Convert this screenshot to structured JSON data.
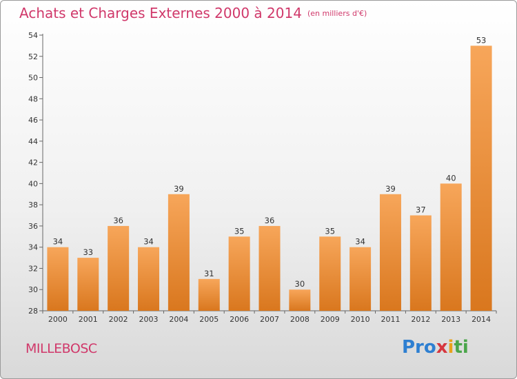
{
  "header": {
    "title": "Achats et Charges Externes 2000 à 2014",
    "unit": "(en milliers d'€)"
  },
  "footer": {
    "commune": "MILLEBOSC",
    "logo": [
      "Pro",
      "x",
      "i",
      "ti"
    ]
  },
  "colors": {
    "title": "#d0386a",
    "bar_light": "#f7a65a",
    "bar_dark": "#d9771e"
  },
  "chart_data": {
    "type": "bar",
    "title": "Achats et Charges Externes 2000 à 2014",
    "xlabel": "",
    "ylabel": "",
    "categories": [
      "2000",
      "2001",
      "2002",
      "2003",
      "2004",
      "2005",
      "2006",
      "2007",
      "2008",
      "2009",
      "2010",
      "2011",
      "2012",
      "2013",
      "2014"
    ],
    "values": [
      34,
      33,
      36,
      34,
      39,
      31,
      35,
      36,
      30,
      35,
      34,
      39,
      37,
      40,
      53
    ],
    "ylim": [
      28,
      54
    ],
    "yticks": [
      28,
      30,
      32,
      34,
      36,
      38,
      40,
      42,
      44,
      46,
      48,
      50,
      52,
      54
    ],
    "grid": false,
    "legend": "none"
  }
}
